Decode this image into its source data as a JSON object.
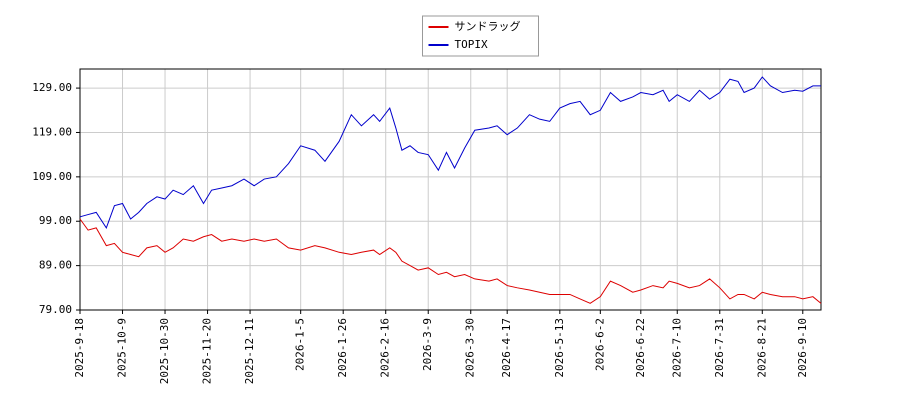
{
  "chart_data": {
    "type": "line",
    "x": [
      "2025-9-18",
      "2025-9-22",
      "2025-9-26",
      "2025-10-1",
      "2025-10-5",
      "2025-10-9",
      "2025-10-13",
      "2025-10-17",
      "2025-10-21",
      "2025-10-26",
      "2025-10-30",
      "2025-11-3",
      "2025-11-8",
      "2025-11-13",
      "2025-11-18",
      "2025-11-22",
      "2025-11-27",
      "2025-12-2",
      "2025-12-8",
      "2025-12-13",
      "2025-12-18",
      "2025-12-24",
      "2025-12-30",
      "2026-1-5",
      "2026-1-12",
      "2026-1-17",
      "2026-1-24",
      "2026-1-30",
      "2026-2-4",
      "2026-2-10",
      "2026-2-13",
      "2026-2-18",
      "2026-2-21",
      "2026-2-24",
      "2026-2-28",
      "2026-3-4",
      "2026-3-9",
      "2026-3-14",
      "2026-3-18",
      "2026-3-22",
      "2026-3-27",
      "2026-4-1",
      "2026-4-8",
      "2026-4-12",
      "2026-4-17",
      "2026-4-22",
      "2026-4-28",
      "2026-5-3",
      "2026-5-8",
      "2026-5-13",
      "2026-5-18",
      "2026-5-23",
      "2026-5-28",
      "2026-6-2",
      "2026-6-7",
      "2026-6-12",
      "2026-6-18",
      "2026-6-22",
      "2026-6-28",
      "2026-7-3",
      "2026-7-6",
      "2026-7-10",
      "2026-7-16",
      "2026-7-21",
      "2026-7-26",
      "2026-7-31",
      "2026-8-5",
      "2026-8-9",
      "2026-8-12",
      "2026-8-17",
      "2026-8-21",
      "2026-8-25",
      "2026-8-31",
      "2026-9-6",
      "2026-9-10",
      "2026-9-15",
      "2026-9-19"
    ],
    "series": [
      {
        "name": "サンドラッグ",
        "color": "#dd0000",
        "values": [
          99.5,
          97,
          97.5,
          93.5,
          94,
          92,
          91.5,
          91,
          93,
          93.5,
          92,
          93,
          95,
          94.5,
          95.5,
          96,
          94.5,
          95,
          94.5,
          95,
          94.5,
          95,
          93,
          92.5,
          93.5,
          93,
          92,
          91.5,
          92,
          92.5,
          91.5,
          93,
          92,
          90,
          89,
          88,
          88.5,
          87,
          87.5,
          86.5,
          87,
          86,
          85.5,
          86,
          84.5,
          84,
          83.5,
          83,
          82.5,
          82.5,
          82.5,
          81.5,
          80.5,
          82,
          85.5,
          84.5,
          83,
          83.5,
          84.5,
          84,
          85.5,
          85,
          84,
          84.5,
          86,
          84,
          81.5,
          82.5,
          82.5,
          81.5,
          83,
          82.5,
          82,
          82,
          81.5,
          82,
          80.5
        ]
      },
      {
        "name": "TOPIX",
        "color": "#0000cc",
        "values": [
          100,
          100.5,
          101,
          97.5,
          102.5,
          103,
          99.5,
          101,
          103,
          104.5,
          104,
          106,
          105,
          107,
          103,
          106,
          106.5,
          107,
          108.5,
          107,
          108.5,
          109,
          112,
          116,
          115,
          112.5,
          117,
          123,
          120.5,
          123,
          121.5,
          124.5,
          120,
          115,
          116,
          114.5,
          114,
          110.5,
          114.5,
          111,
          115.5,
          119.5,
          120,
          120.5,
          118.5,
          120,
          123,
          122,
          121.5,
          124.5,
          125.5,
          126,
          123,
          124,
          128,
          126,
          127,
          128,
          127.5,
          128.5,
          126,
          127.5,
          126,
          128.5,
          126.5,
          128,
          131,
          130.5,
          128,
          129,
          131.5,
          129.5,
          128,
          128.5,
          128.3,
          129.5,
          129.5
        ]
      }
    ],
    "xlim": [
      "2025-9-18",
      "2026-9-19"
    ],
    "xticks": [
      "2025-9-18",
      "2025-10-9",
      "2025-10-30",
      "2025-11-20",
      "2025-12-11",
      "2026-1-5",
      "2026-1-26",
      "2026-2-16",
      "2026-3-9",
      "2026-3-30",
      "2026-4-17",
      "2026-5-13",
      "2026-6-2",
      "2026-6-22",
      "2026-7-10",
      "2026-7-31",
      "2026-8-21",
      "2026-9-10"
    ],
    "ylim": [
      79,
      133.3
    ],
    "yticks": [
      {
        "value": 79,
        "label": "79.00"
      },
      {
        "value": 89,
        "label": "89.00"
      },
      {
        "value": 99,
        "label": "99.00"
      },
      {
        "value": 109,
        "label": "109.00"
      },
      {
        "value": 119,
        "label": "119.00"
      },
      {
        "value": 129,
        "label": "129.00"
      }
    ],
    "grid": true,
    "legend": "upper center"
  }
}
